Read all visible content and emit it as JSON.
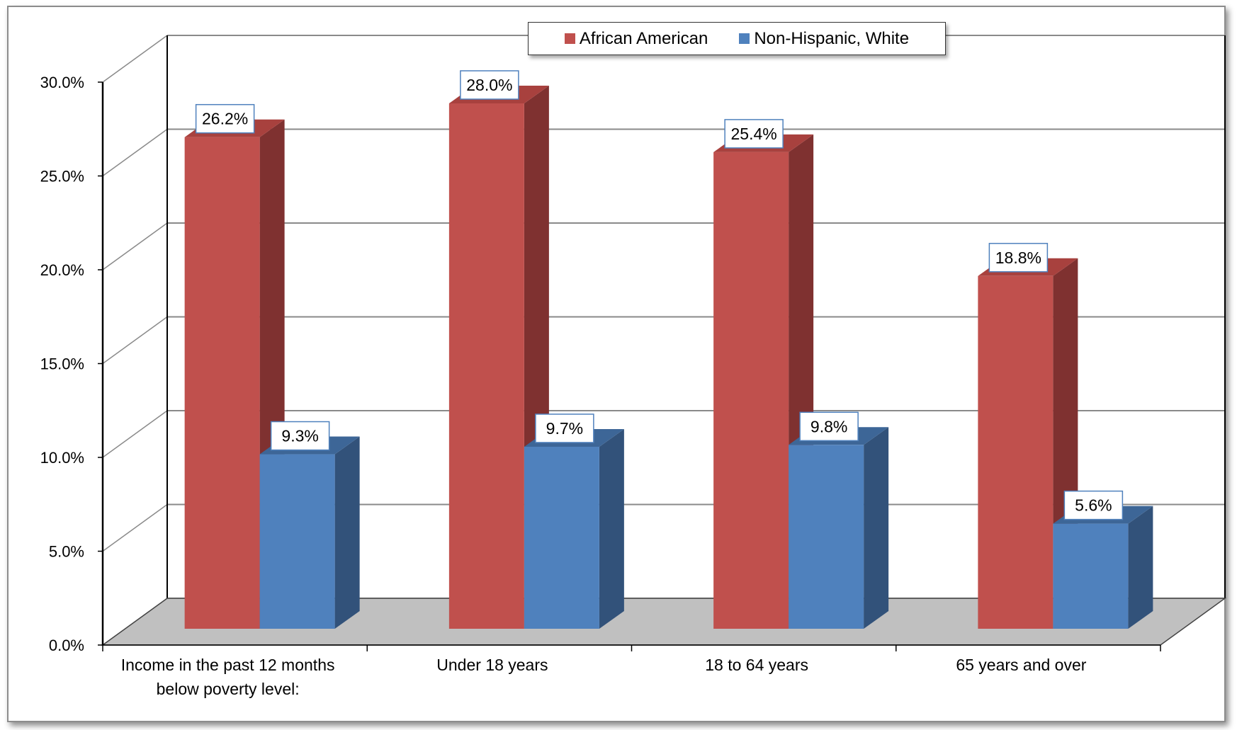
{
  "chart_data": {
    "type": "bar",
    "categories": [
      [
        "Income in the past 12 months",
        "below poverty level:"
      ],
      [
        "Under 18 years"
      ],
      [
        "18 to 64 years"
      ],
      [
        "65 years and over"
      ]
    ],
    "series": [
      {
        "name": "African American",
        "values": [
          26.2,
          28.0,
          25.4,
          18.8
        ],
        "labels": [
          "26.2%",
          "28.0%",
          "25.4%",
          "18.8%"
        ],
        "color": "#c0504d",
        "side_color": "#7f3130",
        "top_color": "#a8413e"
      },
      {
        "name": "Non-Hispanic, White",
        "values": [
          9.3,
          9.7,
          9.8,
          5.6
        ],
        "labels": [
          "9.3%",
          "9.7%",
          "9.8%",
          "5.6%"
        ],
        "color": "#4f81bd",
        "side_color": "#32527a",
        "top_color": "#3d6697"
      }
    ],
    "y_ticks": [
      "0.0%",
      "5.0%",
      "10.0%",
      "15.0%",
      "20.0%",
      "25.0%",
      "30.0%"
    ],
    "ylim": [
      0,
      30
    ],
    "grid": true,
    "three_d": true,
    "legend_position": "top-center",
    "floor_color": "#c0c0c0"
  }
}
